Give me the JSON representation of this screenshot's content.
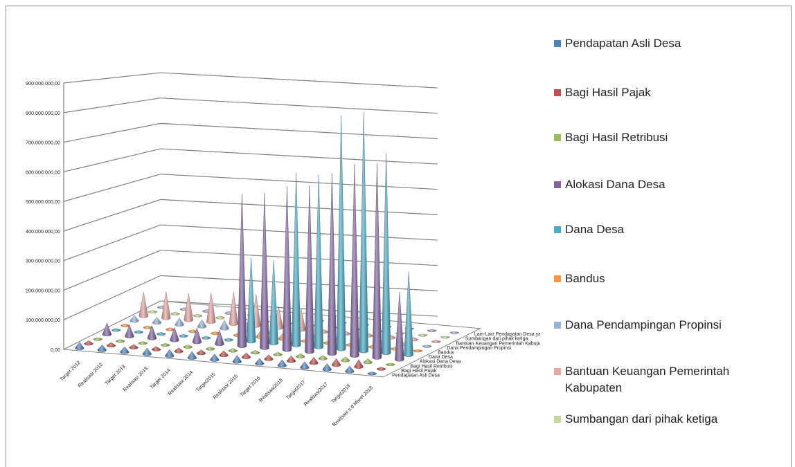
{
  "chart_data": {
    "type": "bar",
    "subtype": "3d-cone",
    "title": "",
    "categories": [
      "Target 2012",
      "Realisasi 2012",
      "Target 2013",
      "Realisasi 2013",
      "Target 2014",
      "Realisasi 2014",
      "Target2015",
      "Realisasi 2015",
      "Target 2016",
      "Realisasi2016",
      "Target2017",
      "Realisasi2017",
      "Target2018",
      "Realisasi s.d Maret 2018"
    ],
    "series": [
      {
        "name": "Pendapatan Asli Desa",
        "color": "#4f81bd",
        "values": [
          20000000,
          18000000,
          18000000,
          20000000,
          22000000,
          22000000,
          20000000,
          22000000,
          18000000,
          20000000,
          20000000,
          20000000,
          18000000,
          5000000
        ]
      },
      {
        "name": "Bagi Hasil Pajak",
        "color": "#c0504d",
        "values": [
          10000000,
          10000000,
          10000000,
          10000000,
          12000000,
          12000000,
          15000000,
          15000000,
          15000000,
          18000000,
          20000000,
          22000000,
          25000000,
          5000000
        ]
      },
      {
        "name": "Bagi Hasil Retribusi",
        "color": "#9bbb59",
        "values": [
          5000000,
          5000000,
          5000000,
          5000000,
          6000000,
          6000000,
          8000000,
          8000000,
          8000000,
          10000000,
          10000000,
          12000000,
          12000000,
          3000000
        ]
      },
      {
        "name": "Alokasi Dana Desa",
        "color": "#8064a2",
        "values": [
          40000000,
          40000000,
          45000000,
          45000000,
          50000000,
          50000000,
          540000000,
          550000000,
          580000000,
          590000000,
          640000000,
          680000000,
          690000000,
          240000000
        ]
      },
      {
        "name": "Dana Desa",
        "color": "#4bacc6",
        "values": [
          5000000,
          5000000,
          5000000,
          5000000,
          5000000,
          5000000,
          300000000,
          300000000,
          620000000,
          620000000,
          840000000,
          860000000,
          720000000,
          300000000
        ]
      },
      {
        "name": "Bandus",
        "color": "#f79646",
        "values": [
          5000000,
          5000000,
          5000000,
          5000000,
          5000000,
          5000000,
          20000000,
          20000000,
          5000000,
          5000000,
          5000000,
          5000000,
          5000000,
          3000000
        ]
      },
      {
        "name": "Dana Pendampingan Propinsi",
        "color": "#95b3d7",
        "values": [
          20000000,
          20000000,
          25000000,
          25000000,
          30000000,
          30000000,
          5000000,
          5000000,
          5000000,
          5000000,
          5000000,
          5000000,
          5000000,
          3000000
        ]
      },
      {
        "name": "Bantuan Keuangan Pemerintah Kabupaten",
        "color": "#e6a6a4",
        "values": [
          90000000,
          100000000,
          100000000,
          110000000,
          120000000,
          120000000,
          80000000,
          80000000,
          8000000,
          8000000,
          8000000,
          8000000,
          8000000,
          5000000
        ]
      },
      {
        "name": "Sumbangan dari pihak ketiga",
        "color": "#c3d69b",
        "values": [
          5000000,
          5000000,
          5000000,
          5000000,
          5000000,
          5000000,
          3000000,
          3000000,
          3000000,
          3000000,
          3000000,
          3000000,
          3000000,
          2000000
        ]
      },
      {
        "name": "Lain-Lain Pendapatan Desa yang Sah",
        "color": "#b2a1c7",
        "values": [
          5000000,
          5000000,
          5000000,
          5000000,
          5000000,
          5000000,
          3000000,
          3000000,
          3000000,
          3000000,
          3000000,
          3000000,
          3000000,
          2000000
        ]
      }
    ],
    "depth_labels": [
      "Lain-Lain Pendapatan Desa yang Sah",
      "Sumbangan dari pihak ketiga",
      "Bantuan Keuangan Pemerintah Kabupaten",
      "Dana Pendampingan Propinsi",
      "Bandus",
      "Dana Desa",
      "Alokasi Dana Desa",
      "Bagi Hasil Retribusi",
      "Bagi Hasil Pajak",
      "Pendapatan Asli Desa"
    ],
    "y_ticks": [
      "0,00",
      "100.000.000,00",
      "200.000.000,00",
      "300.000.000,00",
      "400.000.000,00",
      "500.000.000,00",
      "600.000.000,00",
      "700.000.000,00",
      "800.000.000,00",
      "900.000.000,00"
    ],
    "ylim": [
      0,
      900000000
    ],
    "xlabel": "",
    "ylabel": "",
    "grid": true,
    "legend_position": "right"
  },
  "legend": {
    "items": [
      {
        "label": "Pendapatan Asli Desa",
        "color": "#4f81bd"
      },
      {
        "label": "Bagi Hasil Pajak",
        "color": "#c0504d"
      },
      {
        "label": "Bagi Hasil Retribusi",
        "color": "#9bbb59"
      },
      {
        "label": "Alokasi Dana Desa",
        "color": "#8064a2"
      },
      {
        "label": "Dana Desa",
        "color": "#4bacc6"
      },
      {
        "label": "Bandus",
        "color": "#f79646"
      },
      {
        "label": "Dana Pendampingan Propinsi",
        "color": "#95b3d7"
      },
      {
        "label": "Bantuan Keuangan Pemerintah Kabupaten",
        "color": "#e6a6a4"
      },
      {
        "label": "Sumbangan dari pihak ketiga",
        "color": "#c3d69b"
      }
    ]
  }
}
